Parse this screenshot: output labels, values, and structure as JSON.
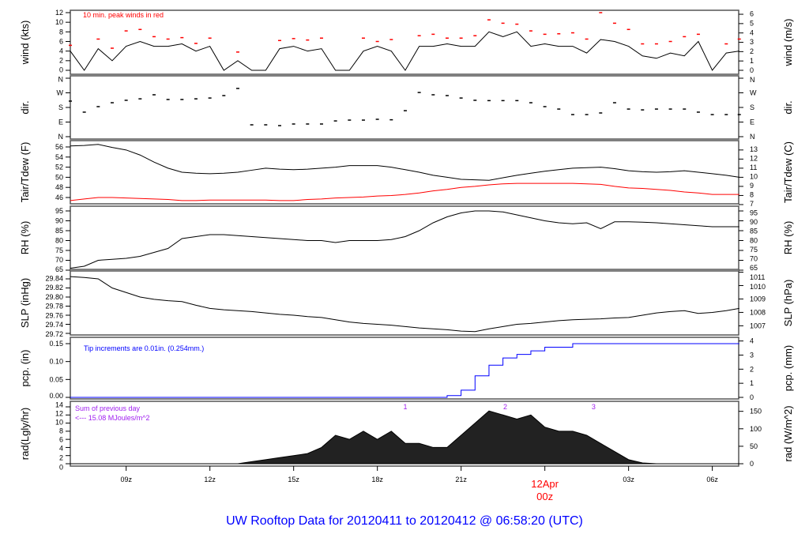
{
  "title": "UW Rooftop Data for 20120411  to  20120412 @ 06:58:20  (UTC)",
  "colors": {
    "main": "#000000",
    "peak": "#ff0000",
    "dewpoint": "#ff0000",
    "precip": "#0000ff",
    "annotation": "#a020f0",
    "date_label": "#ff0000",
    "title": "#0000ff"
  },
  "chart_data": {
    "type": "line",
    "x_ticks": [
      "09z",
      "12z",
      "15z",
      "18z",
      "21z",
      "00z",
      "03z",
      "06z"
    ],
    "date_label": "12Apr",
    "time": [
      "07:00",
      "07:30",
      "08:00",
      "08:30",
      "09:00",
      "09:30",
      "10:00",
      "10:30",
      "11:00",
      "11:30",
      "12:00",
      "12:30",
      "13:00",
      "13:30",
      "14:00",
      "14:30",
      "15:00",
      "15:30",
      "16:00",
      "16:30",
      "17:00",
      "17:30",
      "18:00",
      "18:30",
      "19:00",
      "19:30",
      "20:00",
      "20:30",
      "21:00",
      "21:30",
      "22:00",
      "22:30",
      "23:00",
      "23:30",
      "00:00",
      "00:30",
      "01:00",
      "01:30",
      "02:00",
      "02:30",
      "03:00",
      "03:30",
      "04:00",
      "04:30",
      "05:00",
      "05:30",
      "06:00",
      "06:30",
      "06:58"
    ],
    "panels": {
      "wind": {
        "ylabel": "wind (kts)",
        "ylabel_right": "wind (m/s)",
        "left_ticks": [
          "0",
          "2",
          "4",
          "6",
          "8",
          "10",
          "12"
        ],
        "right_ticks": [
          "0",
          "1",
          "2",
          "3",
          "4",
          "5",
          "6"
        ],
        "annotation": "10 min. peak winds in red",
        "speed": [
          4,
          0,
          4.5,
          2,
          5,
          6,
          5,
          5,
          5.5,
          4,
          5,
          0,
          2,
          0,
          0,
          4.5,
          5,
          4,
          4.5,
          0,
          0,
          4,
          5,
          4,
          0,
          5,
          5,
          5.5,
          5,
          5,
          8,
          7,
          8,
          5,
          5.5,
          5,
          5,
          3.6,
          6.4,
          6,
          5,
          3,
          2.5,
          3.6,
          3,
          6,
          0,
          3.6,
          4
        ],
        "peak": [
          5.2,
          null,
          6.5,
          4.6,
          8.2,
          8.5,
          7,
          6.5,
          6.8,
          5.6,
          6.7,
          null,
          3.8,
          null,
          null,
          6.2,
          6.6,
          6.3,
          6.7,
          null,
          null,
          6.7,
          6,
          6.4,
          null,
          7.2,
          7.5,
          6.7,
          6.7,
          7.2,
          10.5,
          9.8,
          9.6,
          8.2,
          7.5,
          7.6,
          7.8,
          6.5,
          12,
          9.8,
          8.5,
          5.5,
          5.5,
          6,
          7,
          7.5,
          null,
          5.5,
          6.5
        ]
      },
      "dir": {
        "ylabel": "dir.",
        "ylabel_right": "dir.",
        "left_ticks": [
          "N",
          "E",
          "S",
          "W",
          "N"
        ],
        "right_ticks": [
          "N",
          "E",
          "S",
          "W",
          "N"
        ],
        "degrees": [
          219,
          151,
          185,
          209,
          224,
          233,
          258,
          229,
          229,
          233,
          238,
          253,
          297,
          73,
          73,
          68,
          78,
          78,
          78,
          97,
          102,
          102,
          107,
          104,
          160,
          272,
          258,
          253,
          238,
          224,
          222,
          222,
          222,
          209,
          185,
          170,
          136,
          136,
          146,
          209,
          170,
          165,
          170,
          170,
          170,
          151,
          136,
          136,
          136
        ]
      },
      "temp": {
        "ylabel": "Tair/Tdew (F)",
        "ylabel_right": "Tair/Tdew (C)",
        "left_ticks": [
          "46",
          "48",
          "50",
          "52",
          "54",
          "56"
        ],
        "right_ticks": [
          "7",
          "8",
          "9",
          "10",
          "11",
          "12",
          "13"
        ],
        "tair": [
          56.2,
          56.3,
          56.5,
          55.9,
          55.4,
          54.4,
          53,
          51.8,
          51,
          50.8,
          50.7,
          50.8,
          51,
          51.4,
          51.8,
          51.6,
          51.5,
          51.6,
          51.8,
          52,
          52.3,
          52.3,
          52.3,
          52,
          51.5,
          51,
          50.4,
          50,
          49.6,
          49.5,
          49.4,
          49.9,
          50.4,
          50.8,
          51.2,
          51.5,
          51.8,
          51.9,
          52,
          51.7,
          51.3,
          51.1,
          51,
          51.1,
          51.3,
          51,
          50.7,
          50.4,
          50
        ],
        "tdew": [
          45.4,
          45.7,
          46,
          46,
          45.9,
          45.8,
          45.7,
          45.6,
          45.4,
          45.4,
          45.5,
          45.5,
          45.5,
          45.5,
          45.5,
          45.4,
          45.4,
          45.6,
          45.7,
          45.9,
          46,
          46.1,
          46.3,
          46.4,
          46.6,
          46.9,
          47.3,
          47.6,
          48,
          48.2,
          48.5,
          48.7,
          48.8,
          48.8,
          48.8,
          48.8,
          48.8,
          48.7,
          48.6,
          48.2,
          47.9,
          47.8,
          47.6,
          47.4,
          47.1,
          46.9,
          46.6,
          46.6,
          46.6
        ]
      },
      "rh": {
        "ylabel": "RH (%)",
        "ylabel_right": "RH (%)",
        "left_ticks": [
          "65",
          "70",
          "75",
          "80",
          "85",
          "90",
          "95"
        ],
        "right_ticks": [
          "65",
          "70",
          "75",
          "80",
          "85",
          "90",
          "95"
        ],
        "values": [
          66,
          67,
          70,
          70.5,
          71,
          72,
          74,
          76,
          81,
          82,
          83,
          83,
          82.5,
          82,
          81.5,
          81,
          80.5,
          80,
          80,
          79,
          80,
          80,
          80,
          80.5,
          82,
          85,
          89,
          92,
          94,
          95,
          95,
          94.5,
          93,
          91.5,
          90,
          89,
          88.5,
          89,
          86,
          89.5,
          89.5,
          89.3,
          89,
          88.5,
          88,
          87.5,
          87,
          87,
          87
        ]
      },
      "slp": {
        "ylabel": "SLP (inHg)",
        "ylabel_right": "SLP (hPa)",
        "left_ticks": [
          "29.72",
          "29.74",
          "29.76",
          "29.78",
          "29.80",
          "29.82",
          "29.84"
        ],
        "right_ticks": [
          "1007",
          "1008",
          "1009",
          "1010",
          "1011"
        ],
        "values": [
          29.845,
          29.843,
          29.84,
          29.82,
          29.81,
          29.8,
          29.795,
          29.792,
          29.79,
          29.782,
          29.775,
          29.772,
          29.77,
          29.768,
          29.765,
          29.762,
          29.76,
          29.757,
          29.755,
          29.75,
          29.745,
          29.742,
          29.74,
          29.738,
          29.735,
          29.732,
          29.73,
          29.728,
          29.725,
          29.724,
          29.73,
          29.735,
          29.74,
          29.742,
          29.745,
          29.748,
          29.75,
          29.751,
          29.752,
          29.754,
          29.755,
          29.76,
          29.765,
          29.768,
          29.77,
          29.764,
          29.766,
          29.77,
          29.775
        ]
      },
      "pcp": {
        "ylabel": "pcp. (in)",
        "ylabel_right": "pcp. (mm)",
        "left_ticks": [
          "0.00",
          "0.05",
          "0.10",
          "0.15"
        ],
        "right_ticks": [
          "0",
          "1",
          "2",
          "3",
          "4"
        ],
        "annotation": "Tip increments are 0.01in. (0.254mm.)",
        "values": [
          0,
          0,
          0,
          0,
          0,
          0,
          0,
          0,
          0,
          0,
          0,
          0,
          0,
          0,
          0,
          0,
          0,
          0,
          0,
          0,
          0,
          0,
          0,
          0,
          0,
          0,
          0,
          0.005,
          0.02,
          0.06,
          0.09,
          0.11,
          0.12,
          0.13,
          0.14,
          0.14,
          0.15,
          0.15,
          0.15,
          0.15,
          0.15,
          0.15,
          0.15,
          0.15,
          0.15,
          0.15,
          0.15,
          0.15,
          0.15
        ]
      },
      "rad": {
        "ylabel": "rad(Lgly/hr)",
        "ylabel_right": "rad (W/m^2)",
        "left_ticks": [
          "0",
          "2",
          "4",
          "6",
          "8",
          "10",
          "12",
          "14"
        ],
        "right_ticks": [
          "0",
          "50",
          "100",
          "150"
        ],
        "annotation_line1": "Sum of previous day",
        "annotation_line2": "<--- 15.08 MJoules/m^2",
        "values": [
          0,
          0,
          0,
          0,
          0,
          0,
          0,
          0,
          0,
          0,
          0,
          0,
          0,
          0.5,
          1,
          1.5,
          2,
          2.5,
          4,
          7,
          6,
          8,
          6,
          8,
          5,
          5,
          4,
          4,
          7,
          10,
          13,
          12,
          11,
          12,
          9,
          8,
          8,
          7,
          5,
          3,
          1,
          0.2,
          0,
          0,
          0,
          0,
          0,
          0,
          0
        ],
        "cumulative_markers": [
          {
            "label": "1",
            "time": "19:00"
          },
          {
            "label": "2",
            "time": "22:35"
          },
          {
            "label": "3",
            "time": "01:45"
          }
        ]
      }
    }
  }
}
